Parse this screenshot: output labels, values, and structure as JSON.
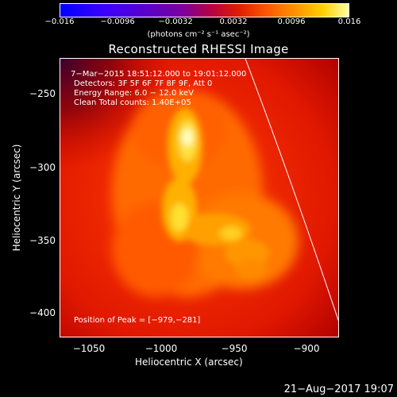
{
  "colorbar": {
    "ticks": [
      "−0.016",
      "−0.0096",
      "−0.0032",
      "0.0032",
      "0.0096",
      "0.016"
    ],
    "unit": "(photons cm⁻² s⁻¹ asec⁻²)"
  },
  "title": "Reconstructed RHESSI Image",
  "annotations": {
    "time": "7−Mar−2015 18:51:12.000 to 19:01:12.000",
    "detectors": "Detectors: 3F 5F 6F 7F 8F 9F, Att 0",
    "energy": "Energy Range: 6.0 − 12.0 keV",
    "method": "Clean     Total counts: 1.40E+05",
    "peak": "Position of Peak = [−979,−281]"
  },
  "axes": {
    "xlabel": "Heliocentric X (arcsec)",
    "ylabel": "Heliocentric Y (arcsec)",
    "xticks": [
      "−1050",
      "−1000",
      "−950",
      "−900"
    ],
    "yticks": [
      "−250",
      "−300",
      "−350",
      "−400"
    ]
  },
  "datestamp": "21−Aug−2017 19:07",
  "colors": {
    "background": "#000000",
    "text": "#ffffff"
  }
}
